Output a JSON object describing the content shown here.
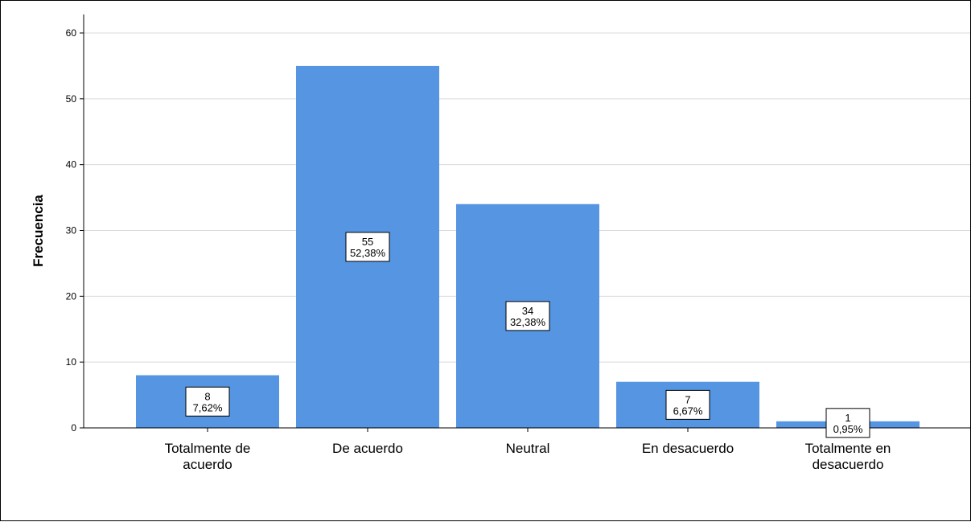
{
  "chart_data": {
    "type": "bar",
    "title": "",
    "xlabel": "",
    "ylabel": "Frecuencia",
    "ylim": [
      0,
      60
    ],
    "yticks": [
      0,
      10,
      20,
      30,
      40,
      50,
      60
    ],
    "grid": true,
    "categories": [
      [
        "Totalmente de",
        "acuerdo"
      ],
      [
        "De acuerdo"
      ],
      [
        "Neutral"
      ],
      [
        "En desacuerdo"
      ],
      [
        "Totalmente en",
        "desacuerdo"
      ]
    ],
    "values": [
      8,
      55,
      34,
      7,
      1
    ],
    "data_labels": [
      [
        "8",
        "7,62%"
      ],
      [
        "55",
        "52,38%"
      ],
      [
        "34",
        "32,38%"
      ],
      [
        "7",
        "6,67%"
      ],
      [
        "1",
        "0,95%"
      ]
    ],
    "colors": {
      "bar": "#5595e2",
      "grid": "#d9d9d9",
      "axis": "#000000"
    }
  }
}
